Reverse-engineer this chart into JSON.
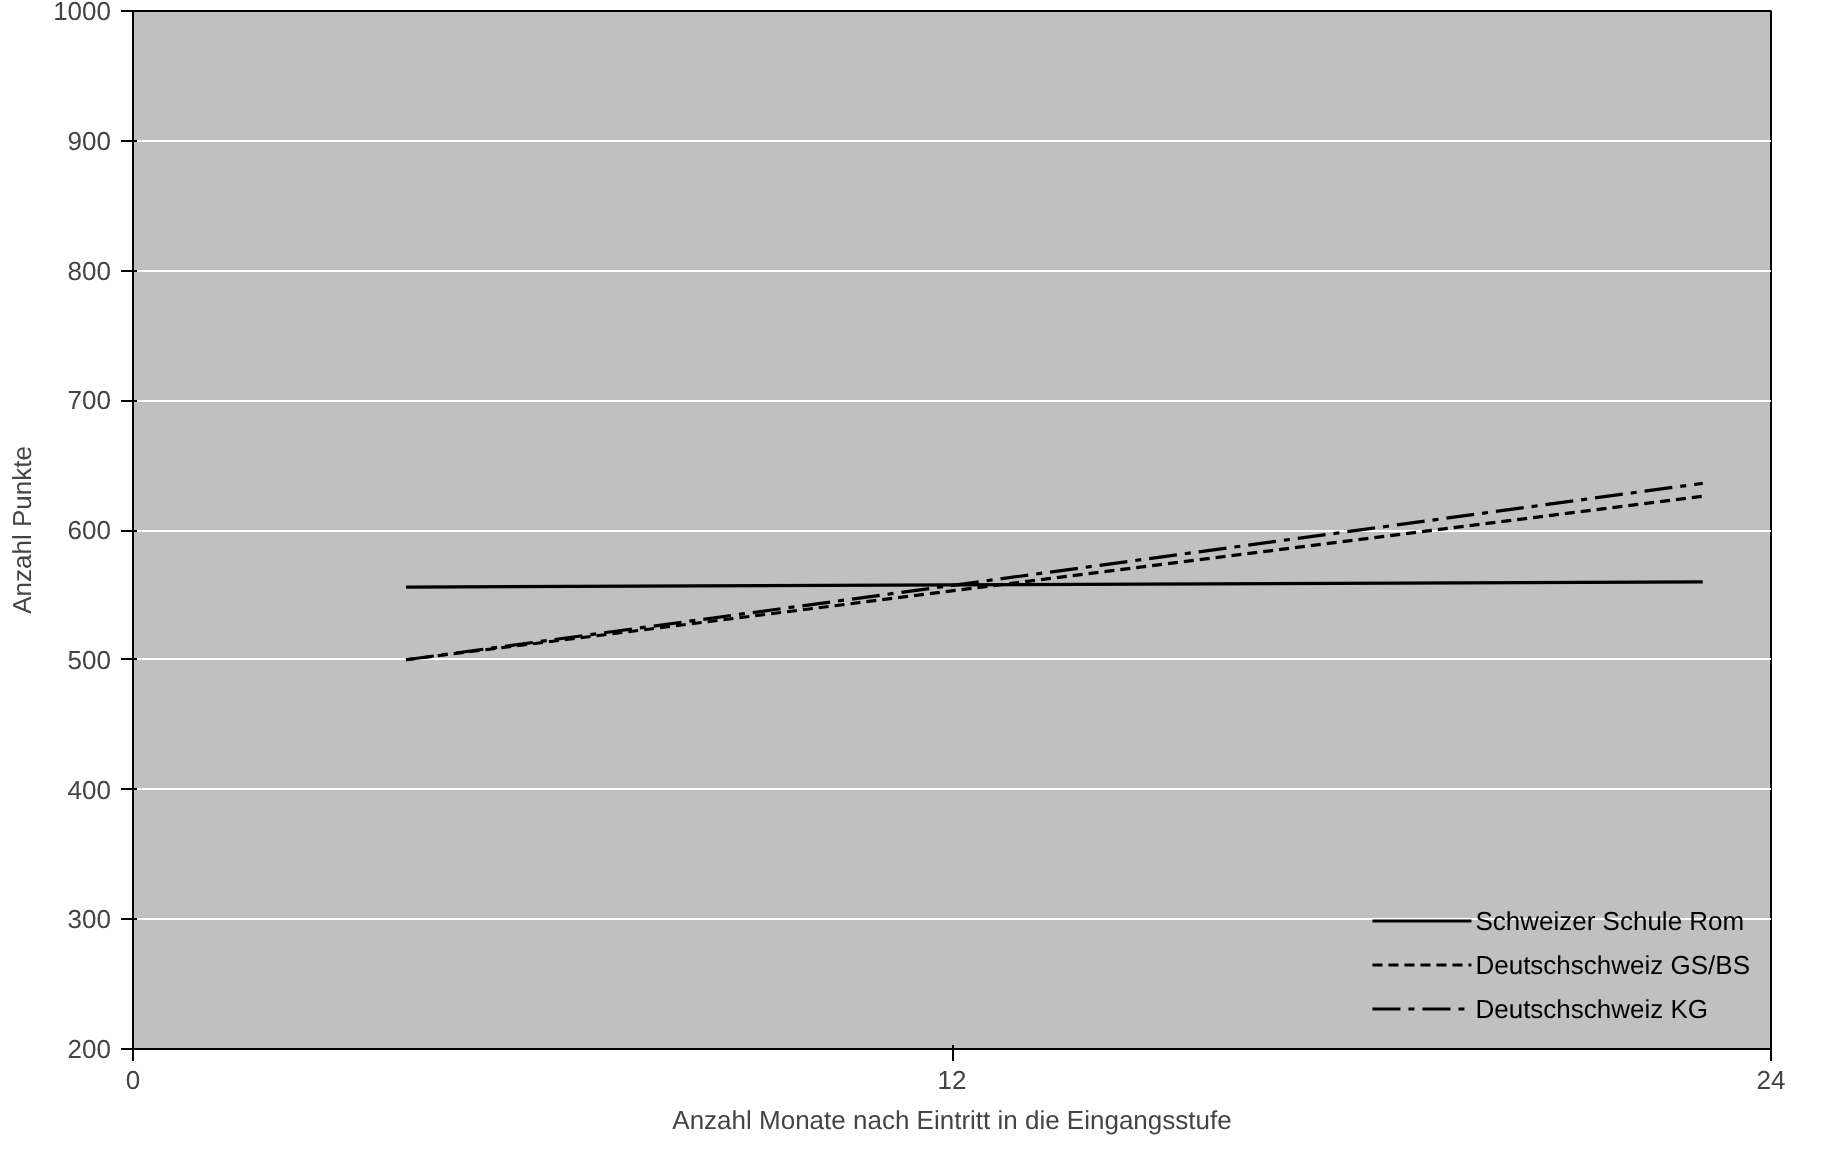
{
  "chart_data": {
    "type": "line",
    "xlabel": "Anzahl Monate nach Eintritt in die Eingangsstufe",
    "ylabel": "Anzahl Punkte",
    "x": [
      4,
      23
    ],
    "xlim": [
      0,
      24
    ],
    "xticks": [
      0,
      12,
      24
    ],
    "ylim": [
      200,
      1000
    ],
    "yticks": [
      200,
      300,
      400,
      500,
      600,
      700,
      800,
      900,
      1000
    ],
    "grid": "y",
    "legend": "bottom right",
    "marker": "none",
    "series": [
      {
        "name": "Schweizer Schule Rom",
        "color": "#000000",
        "line_style": "solid",
        "values": [
          556,
          560
        ]
      },
      {
        "name": "Deutschschweiz GS/BS",
        "color": "#000000",
        "line_style": "dashed",
        "values": [
          500,
          626
        ]
      },
      {
        "name": "Deutschschweiz KG",
        "color": "#000000",
        "line_style": "dashdot",
        "values": [
          500,
          636
        ]
      }
    ]
  }
}
